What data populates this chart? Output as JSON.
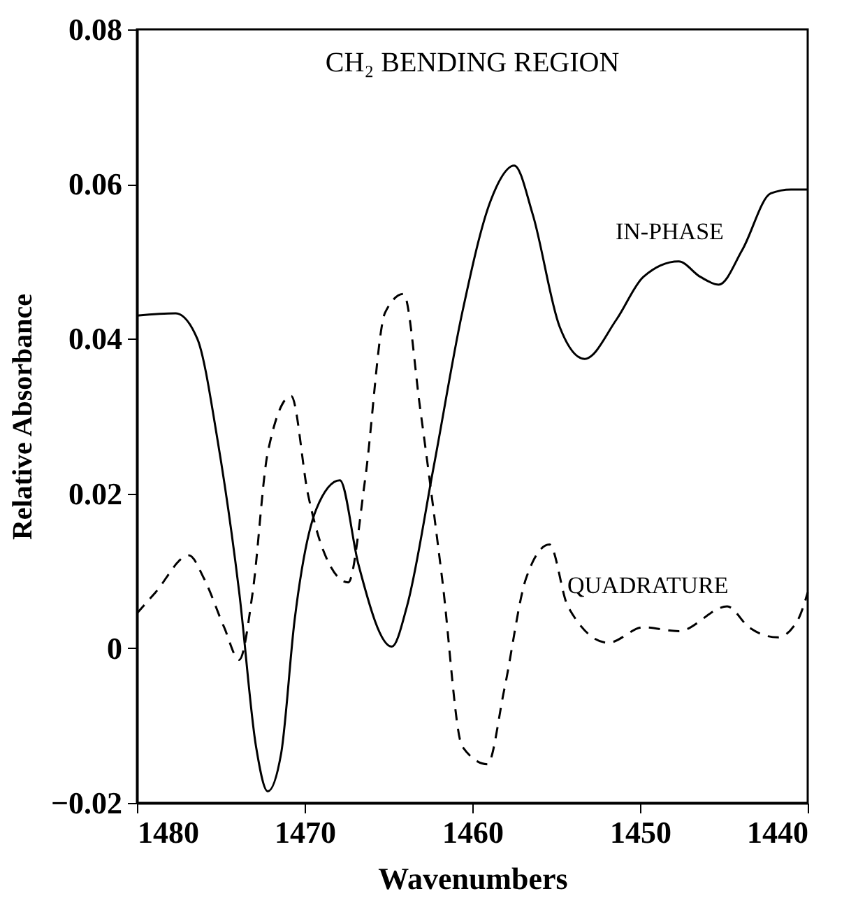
{
  "chart_data": {
    "type": "line",
    "title": "CH₂ BENDING REGION",
    "xlabel": "Wavenumbers",
    "ylabel": "Relative Absorbance",
    "xlim": [
      1480,
      1440
    ],
    "xticks": [
      1480,
      1470,
      1460,
      1450,
      1440
    ],
    "ylim": [
      -0.02,
      0.08
    ],
    "yticks": [
      -0.02,
      0,
      0.02,
      0.04,
      0.06,
      0.08
    ],
    "grid": false,
    "legend": false,
    "marker": "none",
    "series": [
      {
        "name": "IN-PHASE",
        "color": "#000000",
        "line_style": "solid",
        "x": [
          1480.0,
          1477.7,
          1476.4,
          1475.2,
          1473.9,
          1472.9,
          1472.2,
          1471.4,
          1470.6,
          1469.3,
          1467.9,
          1466.8,
          1464.8,
          1463.9,
          1462.3,
          1460.6,
          1458.9,
          1457.5,
          1456.4,
          1454.8,
          1453.3,
          1451.4,
          1449.8,
          1447.7,
          1446.4,
          1445.3,
          1443.9,
          1442.2,
          1441.0,
          1440.0
        ],
        "values": [
          0.043,
          0.0433,
          0.04,
          0.027,
          0.0072,
          -0.0127,
          -0.0185,
          -0.0136,
          0.0036,
          0.018,
          0.0217,
          0.0109,
          0.0002,
          0.0054,
          0.0235,
          0.0434,
          0.0579,
          0.0624,
          0.0561,
          0.0416,
          0.0374,
          0.0425,
          0.048,
          0.05,
          0.048,
          0.047,
          0.0515,
          0.0588,
          0.0593,
          0.0593
        ]
      },
      {
        "name": "QUADRATURE",
        "color": "#000000",
        "line_style": "dashed",
        "x": [
          1480.0,
          1478.9,
          1476.9,
          1476.0,
          1474.8,
          1473.9,
          1473.1,
          1472.2,
          1470.8,
          1469.8,
          1468.9,
          1467.4,
          1466.4,
          1465.2,
          1464.1,
          1463.1,
          1461.8,
          1460.6,
          1459.1,
          1458.1,
          1456.8,
          1455.4,
          1454.3,
          1451.9,
          1449.8,
          1447.7,
          1444.8,
          1443.5,
          1441.8,
          1440.6,
          1440.0
        ],
        "values": [
          0.0045,
          0.0072,
          0.012,
          0.009,
          0.0027,
          -0.0015,
          0.0072,
          0.0253,
          0.0326,
          0.0199,
          0.0127,
          0.0085,
          0.0217,
          0.0434,
          0.0458,
          0.0308,
          0.009,
          -0.0127,
          -0.015,
          -0.0054,
          0.009,
          0.0134,
          0.0054,
          0.0007,
          0.0027,
          0.0022,
          0.0054,
          0.0027,
          0.0014,
          0.0036,
          0.0072
        ]
      }
    ]
  }
}
